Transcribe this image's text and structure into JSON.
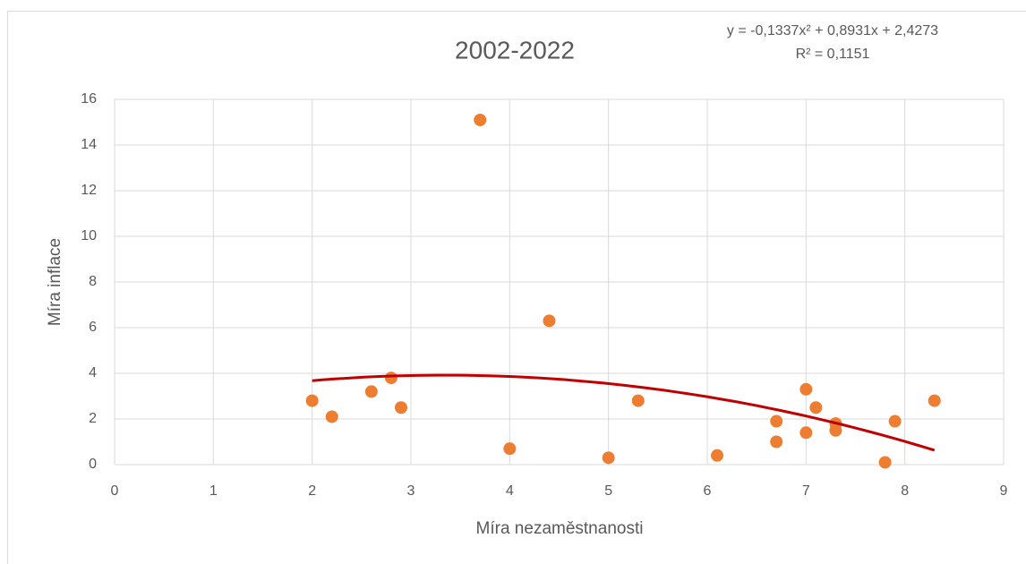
{
  "chart_data": {
    "type": "scatter",
    "title": "2002-2022",
    "x_label": "Míra nezaměstnanosti",
    "y_label": "Míra inflace",
    "x": [
      2.0,
      2.2,
      2.6,
      2.8,
      2.9,
      3.7,
      4.0,
      4.4,
      5.0,
      5.3,
      6.1,
      6.7,
      6.7,
      7.0,
      7.0,
      7.1,
      7.3,
      7.3,
      7.8,
      7.9,
      8.3
    ],
    "values": [
      2.8,
      2.1,
      3.2,
      3.8,
      2.5,
      15.1,
      0.7,
      6.3,
      0.3,
      2.8,
      0.4,
      1.9,
      1.0,
      3.3,
      1.4,
      2.5,
      1.8,
      1.5,
      0.1,
      1.9,
      2.8
    ],
    "color": "#ed7d31",
    "xlim": [
      0,
      9
    ],
    "xticks": [
      0,
      1,
      2,
      3,
      4,
      5,
      6,
      7,
      8,
      9
    ],
    "ylim": [
      0,
      16
    ],
    "yticks": [
      0,
      2,
      4,
      6,
      8,
      10,
      12,
      14,
      16
    ],
    "grid": true,
    "trendline": {
      "type": "polynomial",
      "coefficients": [
        -0.1337,
        0.8931,
        2.4273
      ],
      "color": "#c00000",
      "equation": "y = -0,1337x² + 0,8931x + 2,4273",
      "r_squared": "R² = 0,1151"
    }
  }
}
